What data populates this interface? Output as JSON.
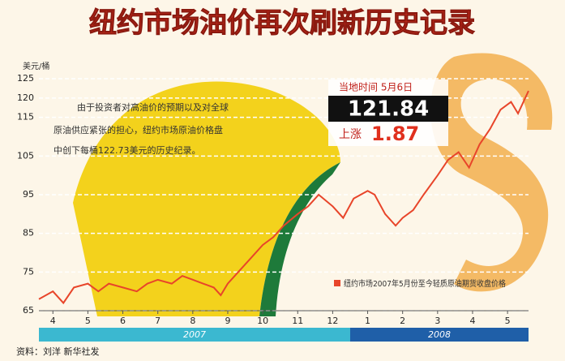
{
  "chart_data": {
    "type": "line",
    "title": "纽约市场油价再次刷新历史记录",
    "y_label": "美元/桶",
    "annotation": [
      "由于投资者对高油价的预期以及对全球",
      "原油供应紧张的担心，纽约市场原油价格盘",
      "中创下每桶122.73美元的历史纪录。"
    ],
    "box": {
      "date": "当地时间 5月6日",
      "price": "121.84",
      "change_label": "上涨",
      "change": "1.87"
    },
    "series": [
      {
        "name": "纽约市场2007年5月份至今轻质原油期货收盘价格",
        "color": "#e8452a",
        "x": [
          -0.4,
          0,
          0.3,
          0.6,
          1,
          1.3,
          1.6,
          2,
          2.4,
          2.7,
          3,
          3.4,
          3.7,
          4,
          4.3,
          4.6,
          4.8,
          5,
          5.3,
          5.6,
          6,
          6.3,
          6.6,
          7,
          7.3,
          7.6,
          8,
          8.3,
          8.6,
          9,
          9.2,
          9.5,
          9.8,
          10,
          10.3,
          10.6,
          11,
          11.3,
          11.6,
          11.9,
          12.2,
          12.5,
          12.8,
          13.1,
          13.3,
          13.6
        ],
        "values": [
          68,
          70,
          67,
          71,
          72,
          70,
          72,
          71,
          70,
          72,
          73,
          72,
          74,
          73,
          72,
          71,
          69,
          72,
          75,
          78,
          82,
          84,
          87,
          90,
          92,
          95,
          92,
          89,
          94,
          96,
          95,
          90,
          87,
          89,
          91,
          95,
          100,
          104,
          106,
          102,
          108,
          112,
          117,
          119,
          116,
          121.84
        ]
      }
    ],
    "xlim": [
      -0.4,
      13.6
    ],
    "xticks": [
      {
        "value": 0,
        "label": "4"
      },
      {
        "value": 1,
        "label": "5"
      },
      {
        "value": 2,
        "label": "6"
      },
      {
        "value": 3,
        "label": "7"
      },
      {
        "value": 4,
        "label": "8"
      },
      {
        "value": 5,
        "label": "9"
      },
      {
        "value": 6,
        "label": "10"
      },
      {
        "value": 7,
        "label": "11"
      },
      {
        "value": 8,
        "label": "12"
      },
      {
        "value": 9,
        "label": "1"
      },
      {
        "value": 10,
        "label": "2"
      },
      {
        "value": 11,
        "label": "3"
      },
      {
        "value": 12,
        "label": "4"
      },
      {
        "value": 13,
        "label": "5"
      }
    ],
    "years": [
      {
        "label": "2007",
        "from": -0.4,
        "to": 8.5,
        "color": "#3bb8d0"
      },
      {
        "label": "2008",
        "from": 8.5,
        "to": 13.6,
        "color": "#1f5fa8"
      }
    ],
    "ylim": [
      65,
      125
    ],
    "yticks": [
      65,
      75,
      85,
      95,
      105,
      115,
      120,
      125
    ],
    "grid": true,
    "source": "资料：刘洋 新华社发"
  }
}
